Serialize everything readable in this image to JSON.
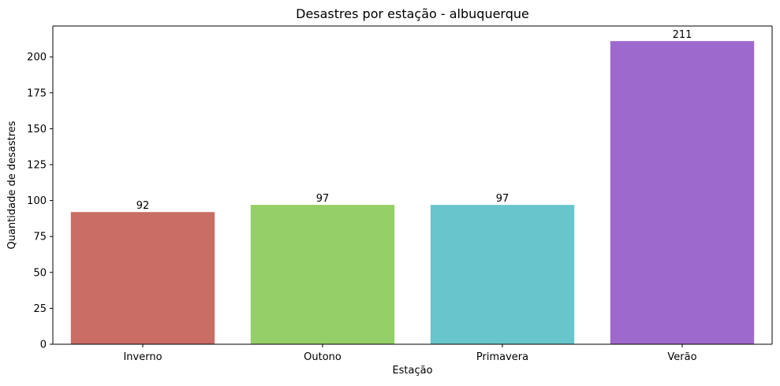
{
  "chart_data": {
    "type": "bar",
    "title": "Desastres por estação - albuquerque",
    "xlabel": "Estação",
    "ylabel": "Quantidade de desastres",
    "categories": [
      "Inverno",
      "Outono",
      "Primavera",
      "Verão"
    ],
    "values": [
      92,
      97,
      97,
      211
    ],
    "data_labels": [
      "92",
      "97",
      "97",
      "211"
    ],
    "colors": [
      "#c96d65",
      "#95cf67",
      "#69c5cc",
      "#9e69cc"
    ],
    "ylim": [
      0,
      221.5
    ],
    "yticks": [
      0,
      25,
      50,
      75,
      100,
      125,
      150,
      175,
      200
    ],
    "grid": false,
    "legend": "none"
  }
}
